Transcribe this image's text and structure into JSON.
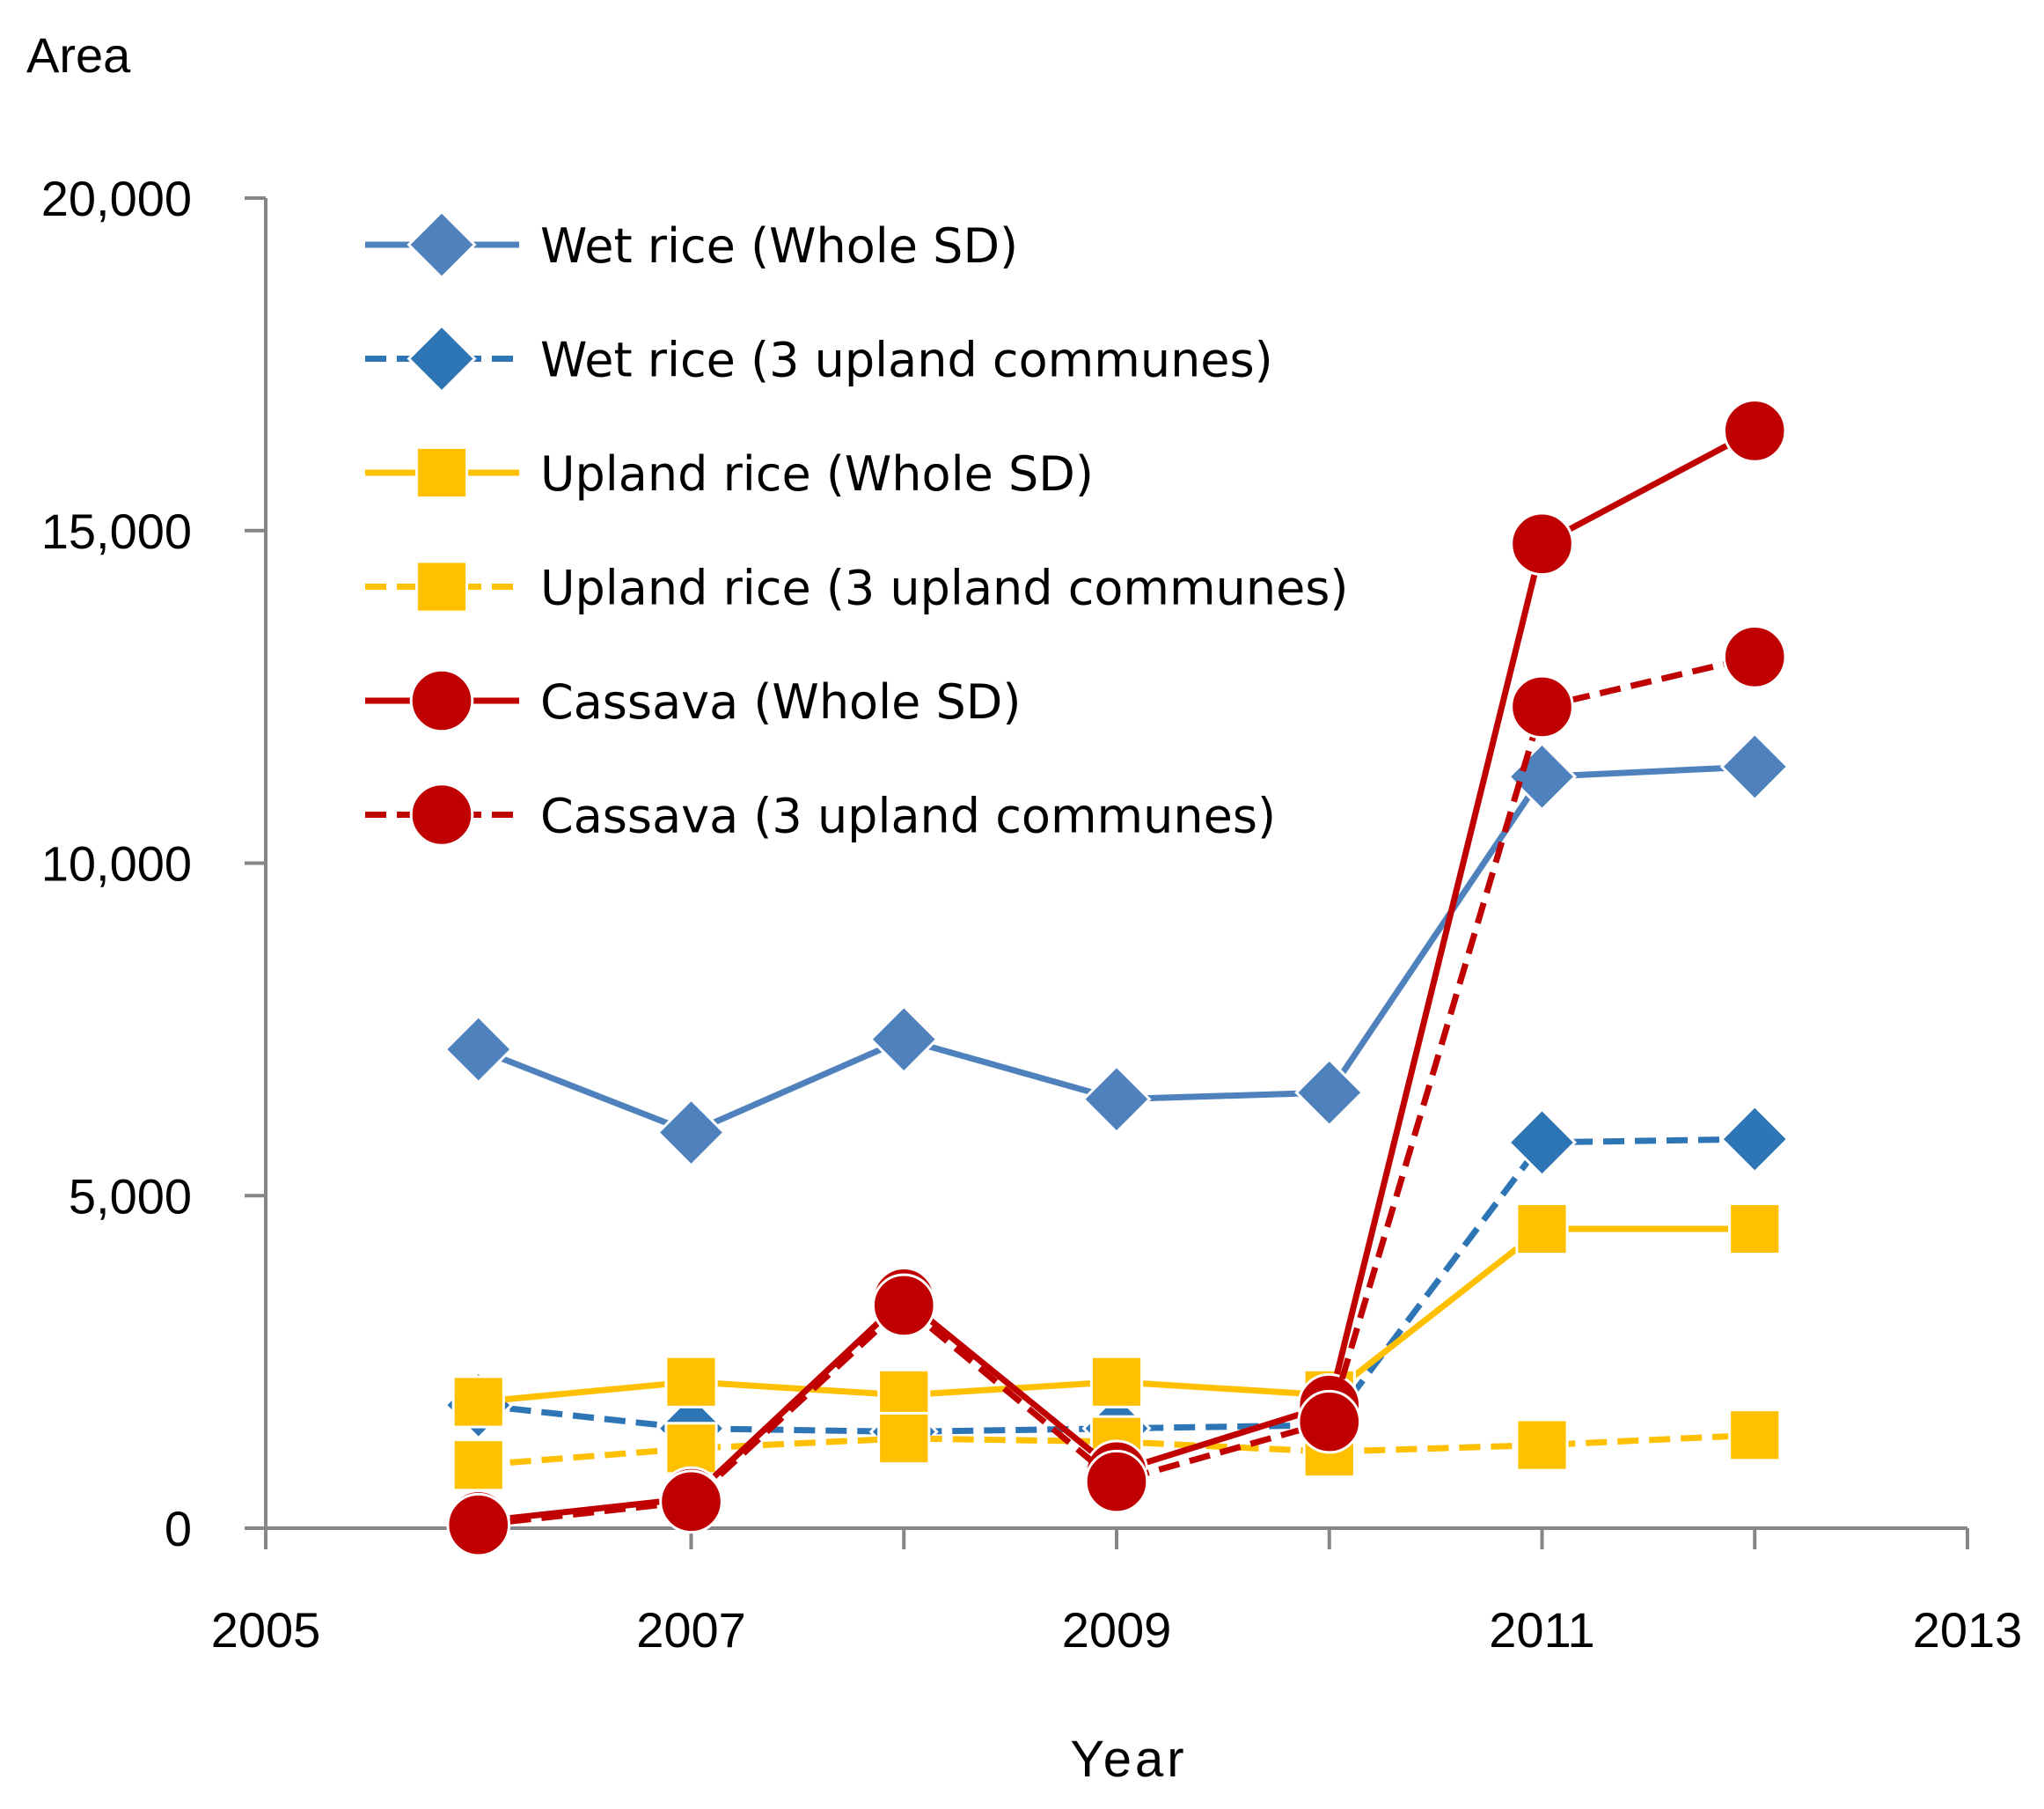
{
  "chart_data": {
    "type": "line",
    "title": "",
    "xlabel": "Year",
    "ylabel": "Area",
    "xlim": [
      2005,
      2013
    ],
    "ylim": [
      0,
      20000
    ],
    "x_ticks": [
      2005,
      2007,
      2009,
      2011,
      2013
    ],
    "x_tick_labels": [
      "2005",
      "2007",
      "2009",
      "2011",
      "2013"
    ],
    "y_ticks": [
      0,
      5000,
      10000,
      15000,
      20000
    ],
    "y_tick_labels": [
      "0",
      "5,000",
      "10,000",
      "15,000",
      "20,000"
    ],
    "grid": false,
    "legend_position": "top-left",
    "x": [
      2006,
      2007,
      2008,
      2009,
      2010,
      2011,
      2012
    ],
    "series": [
      {
        "name": "Wet rice (Whole SD)",
        "color": "#4F81BD",
        "dash": "solid",
        "marker": "diamond",
        "values": [
          7200,
          5950,
          7350,
          6450,
          6550,
          11300,
          11450
        ]
      },
      {
        "name": "Wet rice (3 upland communes)",
        "color": "#2E75B6",
        "dash": "dashed",
        "marker": "diamond",
        "values": [
          1850,
          1500,
          1450,
          1500,
          1550,
          5800,
          5850
        ]
      },
      {
        "name": "Upland rice (Whole SD)",
        "color": "#FFC000",
        "dash": "solid",
        "marker": "square",
        "values": [
          1900,
          2200,
          2000,
          2200,
          2000,
          4500,
          4500
        ]
      },
      {
        "name": "Upland rice (3 upland communes)",
        "color": "#FFC000",
        "dash": "dashed",
        "marker": "square",
        "values": [
          950,
          1200,
          1350,
          1300,
          1150,
          1250,
          1400
        ]
      },
      {
        "name": "Cassava (Whole SD)",
        "color": "#C00000",
        "dash": "solid",
        "marker": "circle",
        "values": [
          100,
          450,
          3450,
          850,
          1850,
          14800,
          16500
        ]
      },
      {
        "name": "Cassava (3 upland communes)",
        "color": "#C00000",
        "dash": "dashed",
        "marker": "circle",
        "values": [
          50,
          400,
          3350,
          700,
          1600,
          12350,
          13100
        ]
      }
    ]
  }
}
